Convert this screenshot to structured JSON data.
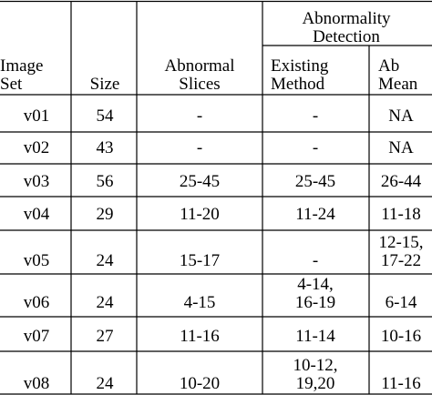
{
  "table": {
    "header": {
      "group": [
        "Abnormality",
        "Detection"
      ],
      "columns": [
        [
          "Image",
          "Set"
        ],
        [
          "Size"
        ],
        [
          "Abnormal",
          "Slices"
        ],
        [
          "Existing",
          "Method"
        ],
        [
          "Ab",
          "Mean"
        ]
      ]
    },
    "rows": [
      [
        [
          "v01"
        ],
        [
          "54"
        ],
        [
          "-"
        ],
        [
          "-"
        ],
        [
          "NA"
        ]
      ],
      [
        [
          "v02"
        ],
        [
          "43"
        ],
        [
          "-"
        ],
        [
          "-"
        ],
        [
          "NA"
        ]
      ],
      [
        [
          "v03"
        ],
        [
          "56"
        ],
        [
          "25-45"
        ],
        [
          "25-45"
        ],
        [
          "26-44"
        ]
      ],
      [
        [
          "v04"
        ],
        [
          "29"
        ],
        [
          "11-20"
        ],
        [
          "11-24"
        ],
        [
          "11-18"
        ]
      ],
      [
        [
          "v05"
        ],
        [
          "24"
        ],
        [
          "15-17"
        ],
        [
          "-"
        ],
        [
          "12-15,",
          "17-22"
        ]
      ],
      [
        [
          "v06"
        ],
        [
          "24"
        ],
        [
          "4-15"
        ],
        [
          "4-14,",
          "16-19"
        ],
        [
          "6-14"
        ]
      ],
      [
        [
          "v07"
        ],
        [
          "27"
        ],
        [
          "11-16"
        ],
        [
          "11-14"
        ],
        [
          "10-16"
        ]
      ],
      [
        [
          "v08"
        ],
        [
          "24"
        ],
        [
          "10-20"
        ],
        [
          "10-12,",
          "19,20"
        ],
        [
          "11-16"
        ]
      ]
    ]
  }
}
